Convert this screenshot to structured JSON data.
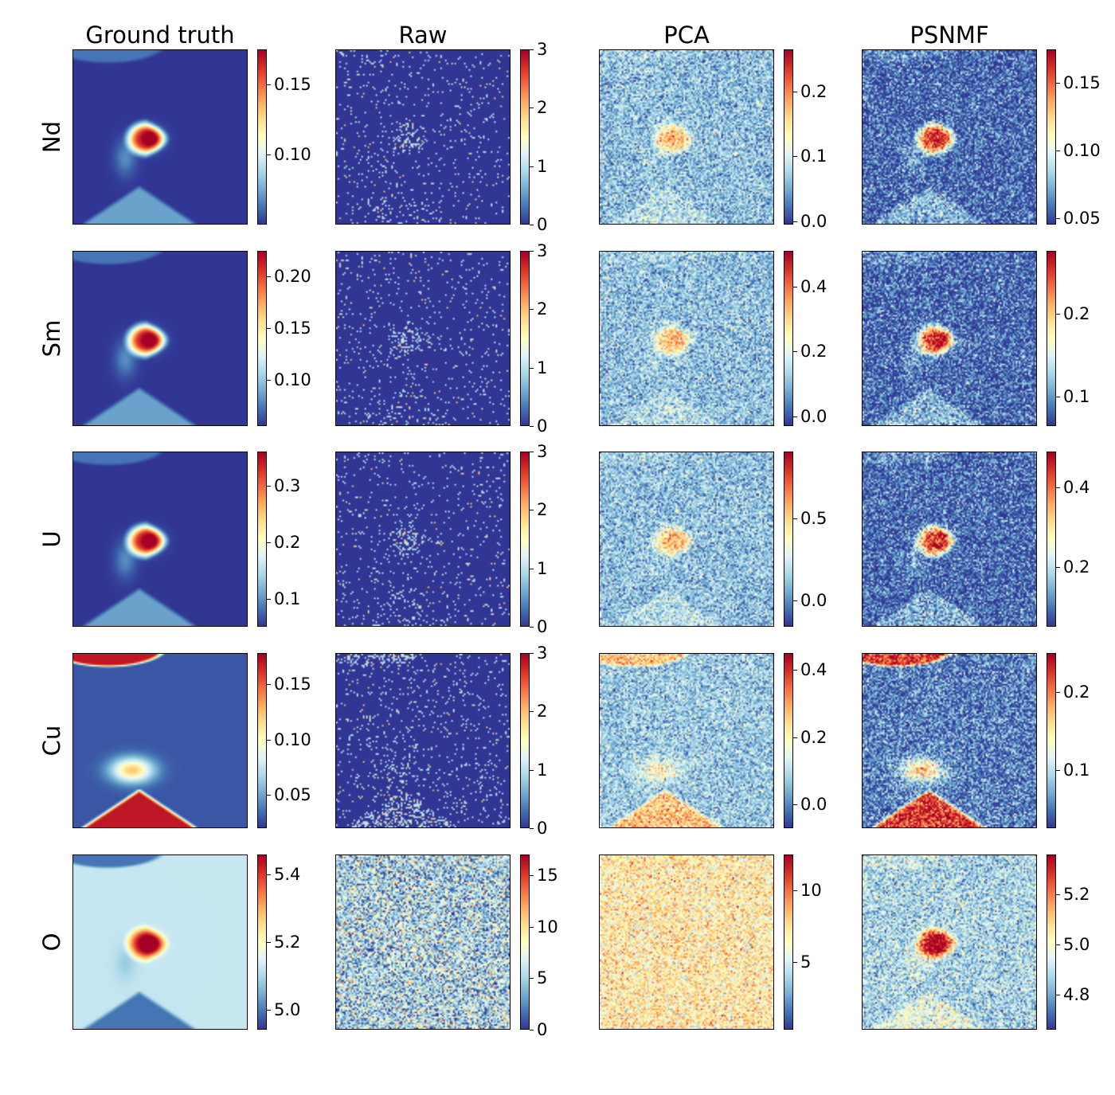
{
  "chart_data": {
    "type": "heatmap",
    "columns": [
      "Ground truth",
      "Raw",
      "PCA",
      "PSNMF"
    ],
    "rows": [
      {
        "label": "Nd",
        "panels": [
          {
            "ticks": [
              "0.10",
              "0.15"
            ],
            "tick_values": [
              0.1,
              0.15
            ],
            "range": [
              0.05,
              0.175
            ]
          },
          {
            "ticks": [
              "0",
              "1",
              "2",
              "3"
            ],
            "tick_values": [
              0,
              1,
              2,
              3
            ],
            "range": [
              0,
              3
            ]
          },
          {
            "ticks": [
              "0.0",
              "0.1",
              "0.2"
            ],
            "tick_values": [
              0.0,
              0.1,
              0.2
            ],
            "range": [
              -0.005,
              0.265
            ]
          },
          {
            "ticks": [
              "0.05",
              "0.10",
              "0.15"
            ],
            "tick_values": [
              0.05,
              0.1,
              0.15
            ],
            "range": [
              0.045,
              0.175
            ]
          }
        ]
      },
      {
        "label": "Sm",
        "panels": [
          {
            "ticks": [
              "0.10",
              "0.15",
              "0.20"
            ],
            "tick_values": [
              0.1,
              0.15,
              0.2
            ],
            "range": [
              0.055,
              0.225
            ]
          },
          {
            "ticks": [
              "0",
              "1",
              "2",
              "3"
            ],
            "tick_values": [
              0,
              1,
              2,
              3
            ],
            "range": [
              0,
              3
            ]
          },
          {
            "ticks": [
              "0.0",
              "0.2",
              "0.4"
            ],
            "tick_values": [
              0.0,
              0.2,
              0.4
            ],
            "range": [
              -0.03,
              0.51
            ]
          },
          {
            "ticks": [
              "0.1",
              "0.2"
            ],
            "tick_values": [
              0.1,
              0.2
            ],
            "range": [
              0.065,
              0.275
            ]
          }
        ]
      },
      {
        "label": "U",
        "panels": [
          {
            "ticks": [
              "0.1",
              "0.2",
              "0.3"
            ],
            "tick_values": [
              0.1,
              0.2,
              0.3
            ],
            "range": [
              0.05,
              0.36
            ]
          },
          {
            "ticks": [
              "0",
              "1",
              "2",
              "3"
            ],
            "tick_values": [
              0,
              1,
              2,
              3
            ],
            "range": [
              0,
              3
            ]
          },
          {
            "ticks": [
              "0.0",
              "0.5"
            ],
            "tick_values": [
              0.0,
              0.5
            ],
            "range": [
              -0.16,
              0.91
            ]
          },
          {
            "ticks": [
              "0.2",
              "0.4"
            ],
            "tick_values": [
              0.2,
              0.4
            ],
            "range": [
              0.05,
              0.49
            ]
          }
        ]
      },
      {
        "label": "Cu",
        "panels": [
          {
            "ticks": [
              "0.05",
              "0.10",
              "0.15"
            ],
            "tick_values": [
              0.05,
              0.1,
              0.15
            ],
            "range": [
              0.02,
              0.178
            ]
          },
          {
            "ticks": [
              "0",
              "1",
              "2",
              "3"
            ],
            "tick_values": [
              0,
              1,
              2,
              3
            ],
            "range": [
              0,
              3
            ]
          },
          {
            "ticks": [
              "0.0",
              "0.2",
              "0.4"
            ],
            "tick_values": [
              0.0,
              0.2,
              0.4
            ],
            "range": [
              -0.07,
              0.45
            ]
          },
          {
            "ticks": [
              "0.1",
              "0.2"
            ],
            "tick_values": [
              0.1,
              0.2
            ],
            "range": [
              0.025,
              0.25
            ]
          }
        ]
      },
      {
        "label": "O",
        "panels": [
          {
            "ticks": [
              "5.0",
              "5.2",
              "5.4"
            ],
            "tick_values": [
              5.0,
              5.2,
              5.4
            ],
            "range": [
              4.94,
              5.46
            ]
          },
          {
            "ticks": [
              "0",
              "5",
              "10",
              "15"
            ],
            "tick_values": [
              0,
              5,
              10,
              15
            ],
            "range": [
              0,
              17
            ]
          },
          {
            "ticks": [
              "5",
              "10"
            ],
            "tick_values": [
              5,
              10
            ],
            "range": [
              0.3,
              12.5
            ]
          },
          {
            "ticks": [
              "4.8",
              "5.0",
              "5.2"
            ],
            "tick_values": [
              4.8,
              5.0,
              5.2
            ],
            "range": [
              4.66,
              5.36
            ]
          }
        ]
      }
    ],
    "colormap": [
      "#313695",
      "#4575b4",
      "#74add1",
      "#abd9e9",
      "#e0f3f8",
      "#ffffbf",
      "#fee090",
      "#fdae61",
      "#f46d43",
      "#d73027",
      "#a50026"
    ]
  }
}
